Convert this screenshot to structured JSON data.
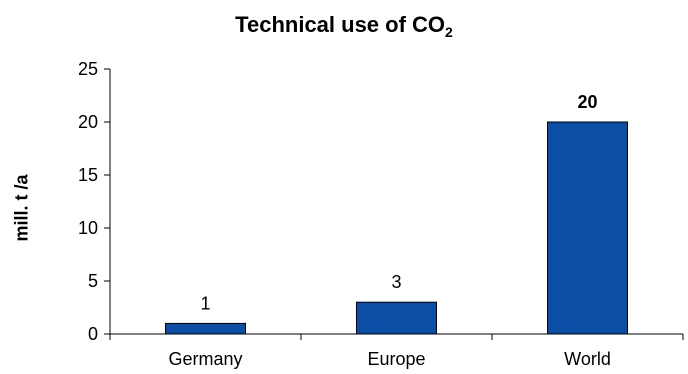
{
  "chart_data": {
    "type": "bar",
    "title": "Technical use of CO",
    "title_subscript": "2",
    "ylabel": "mill. t /a",
    "xlabel": "",
    "categories": [
      "Germany",
      "Europe",
      "World"
    ],
    "values": [
      1,
      3,
      20
    ],
    "data_labels": [
      "1",
      "3",
      "20"
    ],
    "bold_labels": [
      false,
      false,
      true
    ],
    "yticks": [
      "0",
      "5",
      "10",
      "15",
      "20",
      "25"
    ],
    "ylim": [
      0,
      25
    ],
    "grid": false,
    "bar_color": "#0a4ea6"
  }
}
